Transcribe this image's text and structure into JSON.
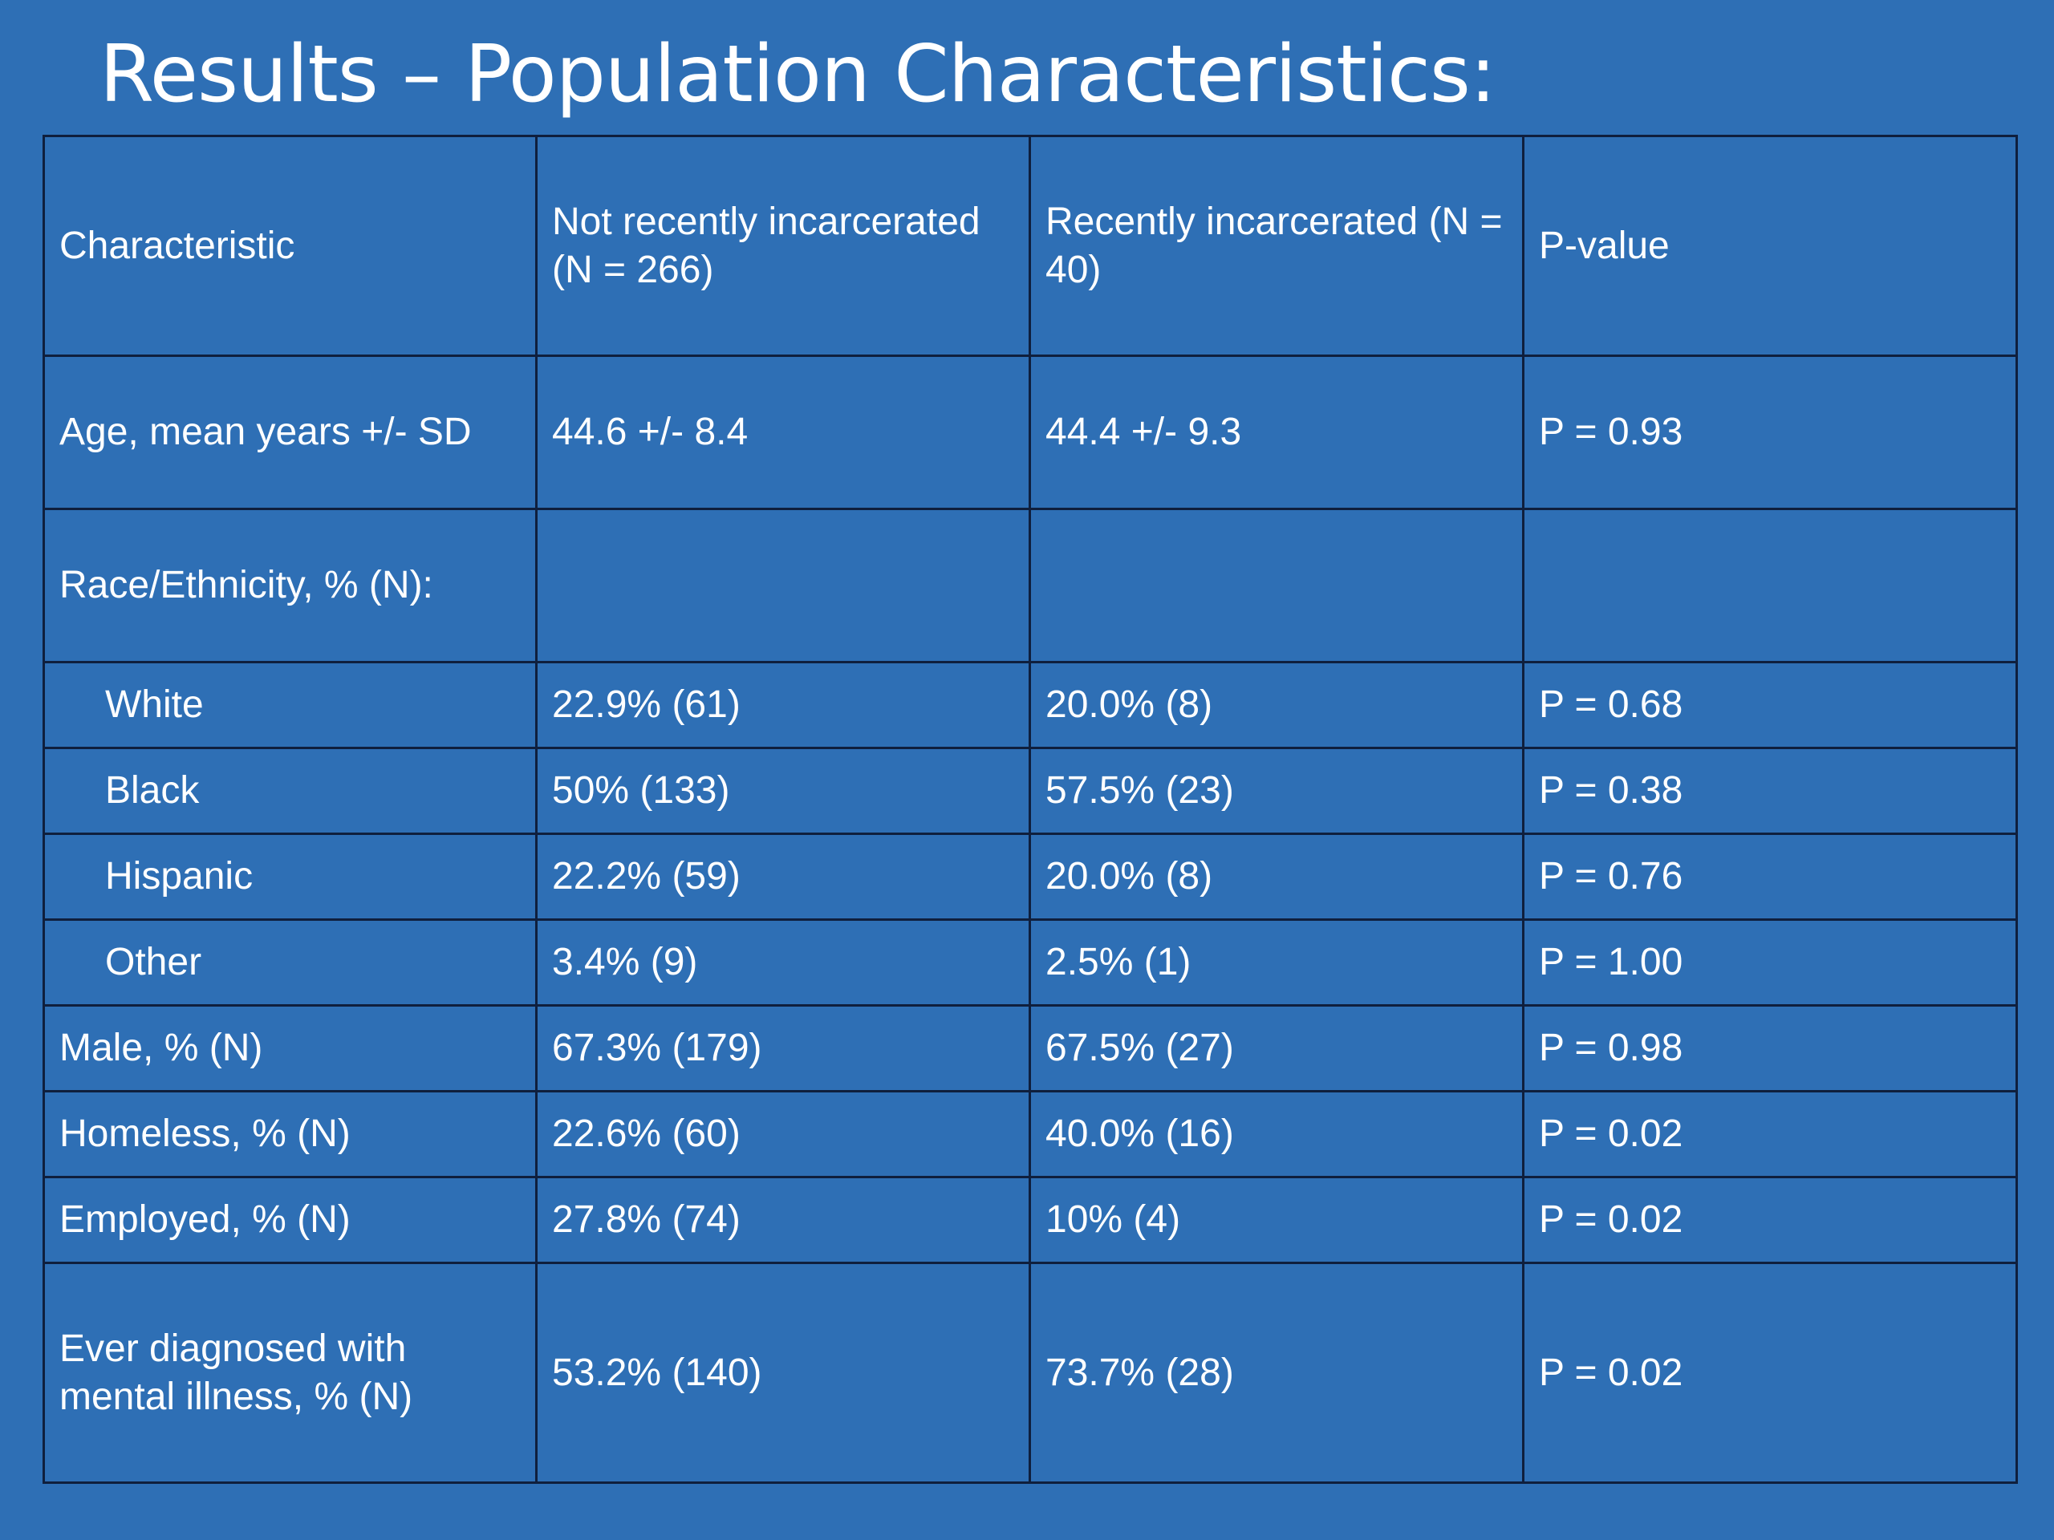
{
  "slide": {
    "title": "Results – Population Characteristics:"
  },
  "colors": {
    "background": "#2e6fb5",
    "text": "#ffffff",
    "significant_p_value": "#f2d66b",
    "grid_lines": "#0f1f3d"
  },
  "table": {
    "headers": [
      "Characteristic",
      "Not recently incarcerated (N = 266)",
      "Recently incarcerated (N = 40)",
      "P-value"
    ],
    "rows": [
      {
        "characteristic": "Age, mean years +/- SD",
        "not_recent": "44.6 +/- 8.4",
        "recent": "44.4 +/- 9.3",
        "p_value": "P = 0.93",
        "significant": false
      },
      {
        "characteristic": "Race/Ethnicity, % (N):",
        "not_recent": "",
        "recent": "",
        "p_value": "",
        "significant": false
      },
      {
        "characteristic": "White",
        "not_recent": "22.9% (61)",
        "recent": "20.0% (8)",
        "p_value": "P = 0.68",
        "significant": false
      },
      {
        "characteristic": "Black",
        "not_recent": "50% (133)",
        "recent": "57.5% (23)",
        "p_value": "P = 0.38",
        "significant": false
      },
      {
        "characteristic": "Hispanic",
        "not_recent": "22.2% (59)",
        "recent": "20.0% (8)",
        "p_value": "P = 0.76",
        "significant": false
      },
      {
        "characteristic": "Other",
        "not_recent": "3.4% (9)",
        "recent": "2.5% (1)",
        "p_value": "P = 1.00",
        "significant": false
      },
      {
        "characteristic": "Male, % (N)",
        "not_recent": "67.3% (179)",
        "recent": "67.5% (27)",
        "p_value": "P = 0.98",
        "significant": false
      },
      {
        "characteristic": "Homeless, % (N)",
        "not_recent": "22.6% (60)",
        "recent": "40.0% (16)",
        "p_value": "P = 0.02",
        "significant": true
      },
      {
        "characteristic": "Employed, % (N)",
        "not_recent": "27.8% (74)",
        "recent": "10% (4)",
        "p_value": "P = 0.02",
        "significant": true
      },
      {
        "characteristic": "Ever diagnosed with mental illness, % (N)",
        "not_recent": "53.2% (140)",
        "recent": "73.7% (28)",
        "p_value": "P = 0.02",
        "significant": true
      }
    ]
  }
}
